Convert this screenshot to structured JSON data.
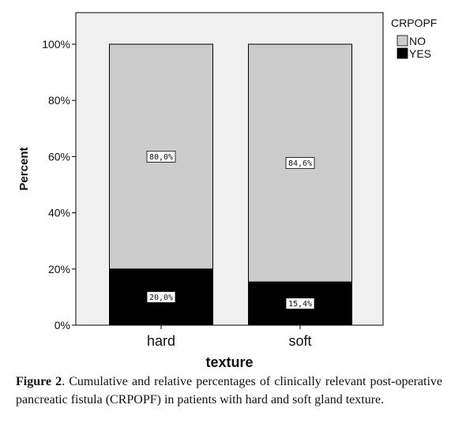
{
  "chart_data": {
    "type": "bar",
    "stacked": true,
    "categories": [
      "hard",
      "soft"
    ],
    "series": [
      {
        "name": "YES",
        "values": [
          20.0,
          15.4
        ],
        "color": "#000000",
        "labels": [
          "20,0%",
          "15,4%"
        ]
      },
      {
        "name": "NO",
        "values": [
          80.0,
          84.6
        ],
        "color": "#cccccc",
        "labels": [
          "80,0%",
          "84,6%"
        ]
      }
    ],
    "xlabel": "texture",
    "ylabel": "Percent",
    "ylim": [
      0,
      100
    ],
    "yticks": [
      "0%",
      "20%",
      "40%",
      "60%",
      "80%",
      "100%"
    ],
    "legend_title": "CRPOPF",
    "legend_placement": "top-right",
    "plot_background": "#f0f0f0"
  },
  "caption": {
    "label": "Figure 2",
    "text": ". Cumulative and relative percentages of clinically relevant post-operative pancreatic fistula (CRPOPF) in patients with hard and soft gland texture."
  }
}
